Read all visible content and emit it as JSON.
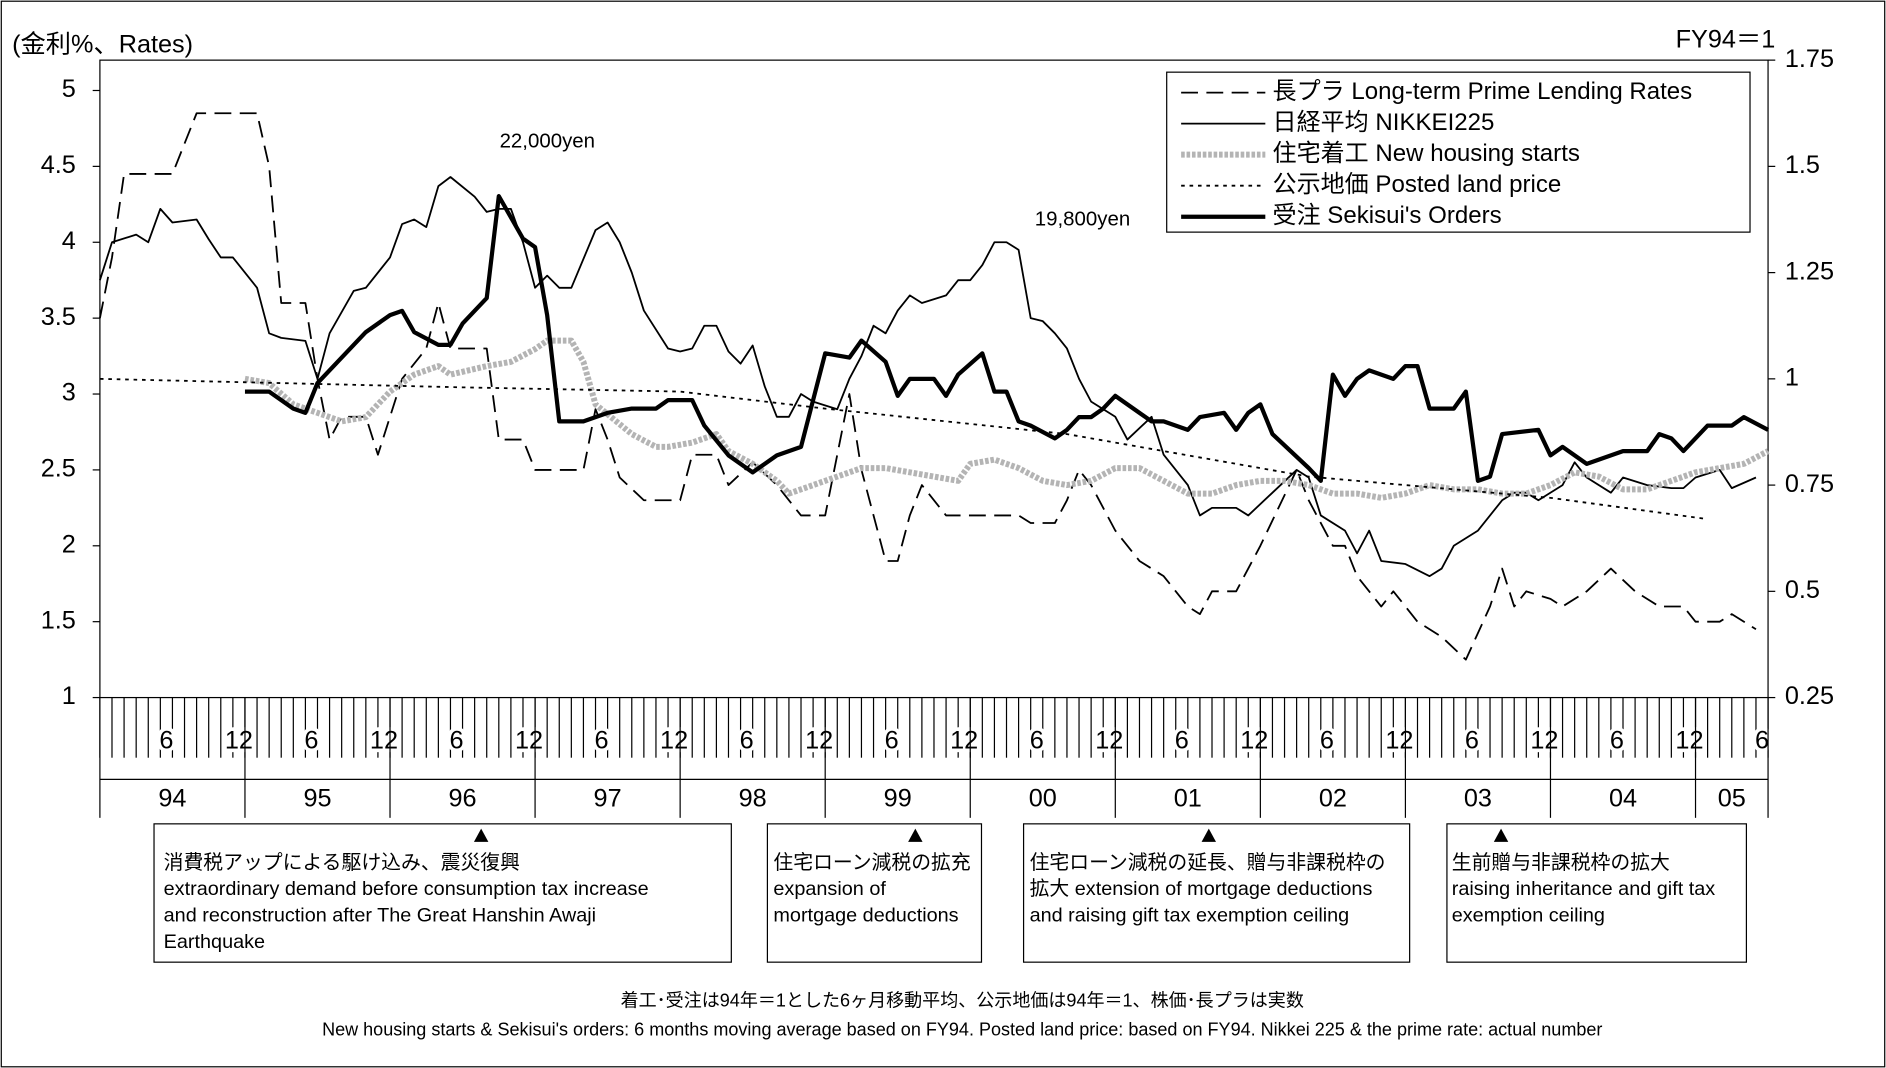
{
  "chart_data": {
    "type": "line",
    "left_label": "(金利%、Rates)",
    "right_label": "FY94＝1",
    "xlim": [
      0,
      138
    ],
    "ylim": [
      1,
      5.2
    ],
    "y2lim": [
      0.25,
      1.75
    ],
    "yticks": [
      1,
      1.5,
      2,
      2.5,
      3,
      3.5,
      4,
      4.5,
      5
    ],
    "y2ticks": [
      0.25,
      0.5,
      0.75,
      1,
      1.25,
      1.5,
      1.75
    ],
    "xticks": [
      {
        "value": 5.5,
        "label": "6"
      },
      {
        "value": 11.5,
        "label": "12"
      },
      {
        "value": 17.5,
        "label": "6"
      },
      {
        "value": 23.5,
        "label": "12"
      },
      {
        "value": 29.5,
        "label": "6"
      },
      {
        "value": 35.5,
        "label": "12"
      },
      {
        "value": 41.5,
        "label": "6"
      },
      {
        "value": 47.5,
        "label": "12"
      },
      {
        "value": 53.5,
        "label": "6"
      },
      {
        "value": 59.5,
        "label": "12"
      },
      {
        "value": 65.5,
        "label": "6"
      },
      {
        "value": 71.5,
        "label": "12"
      },
      {
        "value": 77.5,
        "label": "6"
      },
      {
        "value": 83.5,
        "label": "12"
      },
      {
        "value": 89.5,
        "label": "6"
      },
      {
        "value": 95.5,
        "label": "12"
      },
      {
        "value": 101.5,
        "label": "6"
      },
      {
        "value": 107.5,
        "label": "12"
      },
      {
        "value": 113.5,
        "label": "6"
      },
      {
        "value": 119.5,
        "label": "12"
      },
      {
        "value": 125.5,
        "label": "6"
      },
      {
        "value": 131.5,
        "label": "12"
      },
      {
        "value": 137.5,
        "label": "6"
      }
    ],
    "years": [
      "94",
      "95",
      "96",
      "97",
      "98",
      "99",
      "00",
      "01",
      "02",
      "03",
      "04",
      "05"
    ],
    "year_bounds": [
      0,
      12,
      24,
      36,
      48,
      60,
      72,
      84,
      96,
      108,
      120,
      132,
      138
    ],
    "series": [
      {
        "name": "長プラ  Long-term Prime Lending Rates",
        "color": "#000000",
        "dash": "14,7",
        "width": 1.5,
        "x": [
          0,
          1,
          2,
          6,
          8,
          13,
          14,
          15,
          17,
          18,
          19,
          20,
          22,
          23,
          25,
          27,
          28,
          29,
          32,
          33,
          35,
          36,
          40,
          41,
          42,
          43,
          45,
          48,
          49,
          51,
          52,
          54,
          56,
          58,
          60,
          61,
          62,
          63,
          65,
          66,
          67,
          68,
          70,
          76,
          77,
          79,
          80,
          81,
          82,
          84,
          86,
          88,
          90,
          91,
          92,
          94,
          96,
          99,
          100,
          102,
          103,
          104,
          106,
          107,
          109,
          111,
          113,
          115,
          116,
          117,
          118,
          120,
          121,
          123,
          125,
          127,
          129,
          131,
          132,
          134,
          135,
          137
        ],
        "values": [
          3.5,
          3.9,
          4.45,
          4.45,
          4.85,
          4.85,
          4.5,
          3.6,
          3.6,
          3.1,
          2.7,
          2.85,
          2.85,
          2.6,
          3.1,
          3.3,
          3.6,
          3.3,
          3.3,
          2.7,
          2.7,
          2.5,
          2.5,
          2.9,
          2.7,
          2.45,
          2.3,
          2.3,
          2.6,
          2.6,
          2.4,
          2.55,
          2.4,
          2.2,
          2.2,
          2.6,
          3.0,
          2.5,
          1.9,
          1.9,
          2.2,
          2.4,
          2.2,
          2.2,
          2.15,
          2.15,
          2.3,
          2.5,
          2.4,
          2.1,
          1.9,
          1.8,
          1.6,
          1.55,
          1.7,
          1.7,
          2.0,
          2.5,
          2.3,
          2.0,
          2.0,
          1.8,
          1.6,
          1.7,
          1.5,
          1.4,
          1.25,
          1.6,
          1.85,
          1.6,
          1.7,
          1.65,
          1.6,
          1.7,
          1.85,
          1.7,
          1.6,
          1.6,
          1.5,
          1.5,
          1.55,
          1.45
        ]
      },
      {
        "name": "日経平均  NIKKEI225",
        "color": "#000000",
        "dash": "none",
        "width": 1.5,
        "x": [
          0,
          1,
          3,
          4,
          5,
          6,
          8,
          9,
          10,
          11,
          13,
          14,
          15,
          17,
          18,
          19,
          21,
          22,
          24,
          25,
          26,
          27,
          28,
          29,
          31,
          32,
          33,
          34,
          35,
          36,
          37,
          38,
          39,
          41,
          42,
          43,
          44,
          45,
          47,
          48,
          49,
          50,
          51,
          52,
          53,
          54,
          55,
          56,
          57,
          58,
          59,
          61,
          62,
          63,
          64,
          65,
          66,
          67,
          68,
          70,
          71,
          72,
          73,
          74,
          75,
          76,
          77,
          78,
          79,
          80,
          81,
          82,
          84,
          85,
          87,
          88,
          90,
          91,
          92,
          94,
          95,
          97,
          99,
          100,
          101,
          103,
          104,
          105,
          106,
          108,
          110,
          111,
          112,
          114,
          115,
          116,
          117,
          118,
          119,
          121,
          122,
          123,
          125,
          126,
          128,
          130,
          131,
          132,
          134,
          135,
          137
        ],
        "values": [
          3.75,
          4.0,
          4.05,
          4.0,
          4.22,
          4.13,
          4.15,
          4.02,
          3.9,
          3.9,
          3.7,
          3.4,
          3.37,
          3.35,
          3.1,
          3.4,
          3.68,
          3.7,
          3.9,
          4.12,
          4.15,
          4.1,
          4.37,
          4.43,
          4.3,
          4.2,
          4.22,
          4.22,
          4.0,
          3.7,
          3.78,
          3.7,
          3.7,
          4.08,
          4.13,
          4.0,
          3.8,
          3.55,
          3.3,
          3.28,
          3.3,
          3.45,
          3.45,
          3.28,
          3.2,
          3.32,
          3.05,
          2.85,
          2.85,
          3.0,
          2.95,
          2.9,
          3.1,
          3.25,
          3.45,
          3.4,
          3.55,
          3.65,
          3.6,
          3.65,
          3.75,
          3.75,
          3.85,
          4.0,
          4.0,
          3.95,
          3.5,
          3.48,
          3.4,
          3.3,
          3.1,
          2.95,
          2.85,
          2.7,
          2.85,
          2.6,
          2.4,
          2.2,
          2.25,
          2.25,
          2.2,
          2.35,
          2.5,
          2.45,
          2.2,
          2.1,
          1.95,
          2.1,
          1.9,
          1.88,
          1.8,
          1.85,
          2.0,
          2.1,
          2.2,
          2.3,
          2.35,
          2.35,
          2.3,
          2.4,
          2.55,
          2.45,
          2.35,
          2.45,
          2.4,
          2.38,
          2.38,
          2.45,
          2.5,
          2.38,
          2.45
        ]
      },
      {
        "name": "住宅着工 New housing starts",
        "color": "#b4b4b4",
        "dash": "3,1.5",
        "width": 5,
        "axis": "y2",
        "x": [
          12,
          14,
          16,
          18,
          20,
          22,
          24,
          26,
          28,
          29,
          32,
          34,
          36,
          37,
          39,
          40,
          41,
          44,
          46,
          47,
          49,
          51,
          52,
          54,
          56,
          57,
          59,
          61,
          63,
          65,
          67,
          69,
          71,
          72,
          74,
          76,
          78,
          80,
          82,
          84,
          86,
          88,
          90,
          92,
          94,
          96,
          98,
          100,
          102,
          104,
          106,
          108,
          110,
          112,
          114,
          116,
          118,
          120,
          122,
          124,
          126,
          128,
          130,
          132,
          134,
          136,
          138
        ],
        "values": [
          1.0,
          0.99,
          0.94,
          0.92,
          0.9,
          0.91,
          0.97,
          1.01,
          1.03,
          1.01,
          1.03,
          1.04,
          1.07,
          1.09,
          1.09,
          1.04,
          0.94,
          0.87,
          0.84,
          0.84,
          0.85,
          0.87,
          0.83,
          0.8,
          0.76,
          0.73,
          0.75,
          0.77,
          0.79,
          0.79,
          0.78,
          0.77,
          0.76,
          0.8,
          0.81,
          0.79,
          0.76,
          0.75,
          0.76,
          0.79,
          0.79,
          0.76,
          0.73,
          0.73,
          0.75,
          0.76,
          0.76,
          0.75,
          0.73,
          0.73,
          0.72,
          0.73,
          0.75,
          0.74,
          0.74,
          0.73,
          0.73,
          0.75,
          0.78,
          0.77,
          0.74,
          0.74,
          0.76,
          0.78,
          0.79,
          0.8,
          0.83
        ]
      },
      {
        "name": "公示地価  Posted land price",
        "color": "#000000",
        "dash": "3,4",
        "width": 1.5,
        "axis": "y2",
        "x": [
          0,
          30,
          48,
          60,
          80,
          100,
          120,
          133
        ],
        "values": [
          1.0,
          0.98,
          0.97,
          0.93,
          0.87,
          0.77,
          0.72,
          0.67
        ]
      },
      {
        "name": "受注 Sekisui's Orders",
        "color": "#000000",
        "dash": "none",
        "width": 3.5,
        "axis": "y2",
        "x": [
          12,
          14,
          16,
          17,
          18,
          21,
          22,
          24,
          25,
          26,
          28,
          29,
          30,
          32,
          33,
          35,
          36,
          37,
          38,
          40,
          42,
          44,
          46,
          47,
          49,
          50,
          52,
          54,
          56,
          58,
          60,
          62,
          63,
          65,
          66,
          67,
          69,
          70,
          71,
          73,
          74,
          75,
          76,
          77,
          79,
          80,
          81,
          82,
          83,
          84,
          86,
          87,
          88,
          90,
          91,
          93,
          94,
          95,
          96,
          97,
          100,
          101,
          102,
          103,
          104,
          105,
          107,
          108,
          109,
          110,
          112,
          113,
          114,
          115,
          116,
          119,
          120,
          121,
          123,
          125,
          126,
          128,
          129,
          130,
          131,
          133,
          135,
          136,
          138
        ],
        "values": [
          0.97,
          0.97,
          0.93,
          0.92,
          0.99,
          1.08,
          1.11,
          1.15,
          1.16,
          1.11,
          1.08,
          1.08,
          1.13,
          1.19,
          1.43,
          1.33,
          1.31,
          1.15,
          0.9,
          0.9,
          0.92,
          0.93,
          0.93,
          0.95,
          0.95,
          0.89,
          0.82,
          0.78,
          0.82,
          0.84,
          1.06,
          1.05,
          1.09,
          1.04,
          0.96,
          1.0,
          1.0,
          0.96,
          1.01,
          1.06,
          0.97,
          0.97,
          0.9,
          0.89,
          0.86,
          0.88,
          0.91,
          0.91,
          0.93,
          0.96,
          0.92,
          0.9,
          0.9,
          0.88,
          0.91,
          0.92,
          0.88,
          0.92,
          0.94,
          0.87,
          0.79,
          0.76,
          1.01,
          0.96,
          1.0,
          1.02,
          1.0,
          1.03,
          1.03,
          0.93,
          0.93,
          0.97,
          0.76,
          0.77,
          0.87,
          0.88,
          0.82,
          0.84,
          0.8,
          0.82,
          0.83,
          0.83,
          0.87,
          0.86,
          0.83,
          0.89,
          0.89,
          0.91,
          0.88
        ]
      }
    ],
    "point_labels": [
      "22,000yen",
      "19,800yen"
    ],
    "notes": [
      {
        "lines": [
          "消費税アップによる駆け込み、震災復興",
          "extraordinary demand before consumption tax increase",
          "and reconstruction after The Great Hanshin Awaji",
          "Earthquake"
        ]
      },
      {
        "lines": [
          "住宅ローン減税の拡充",
          "expansion of",
          "mortgage deductions"
        ]
      },
      {
        "lines": [
          "住宅ローン減税の延長、贈与非課税枠の",
          "拡大   extension of mortgage deductions",
          "and raising gift tax exemption ceiling"
        ]
      },
      {
        "lines": [
          "生前贈与非課税枠の拡大",
          "raising inheritance and gift tax",
          "exemption ceiling"
        ]
      }
    ],
    "footnotes": [
      "着工･受注は94年＝1とした6ヶ月移動平均、公示地価は94年＝1、株価･長プラは実数",
      "New housing starts & Sekisui's orders: 6 months moving average based on FY94. Posted land price: based on FY94.  Nikkei 225 & the prime rate: actual number"
    ]
  }
}
